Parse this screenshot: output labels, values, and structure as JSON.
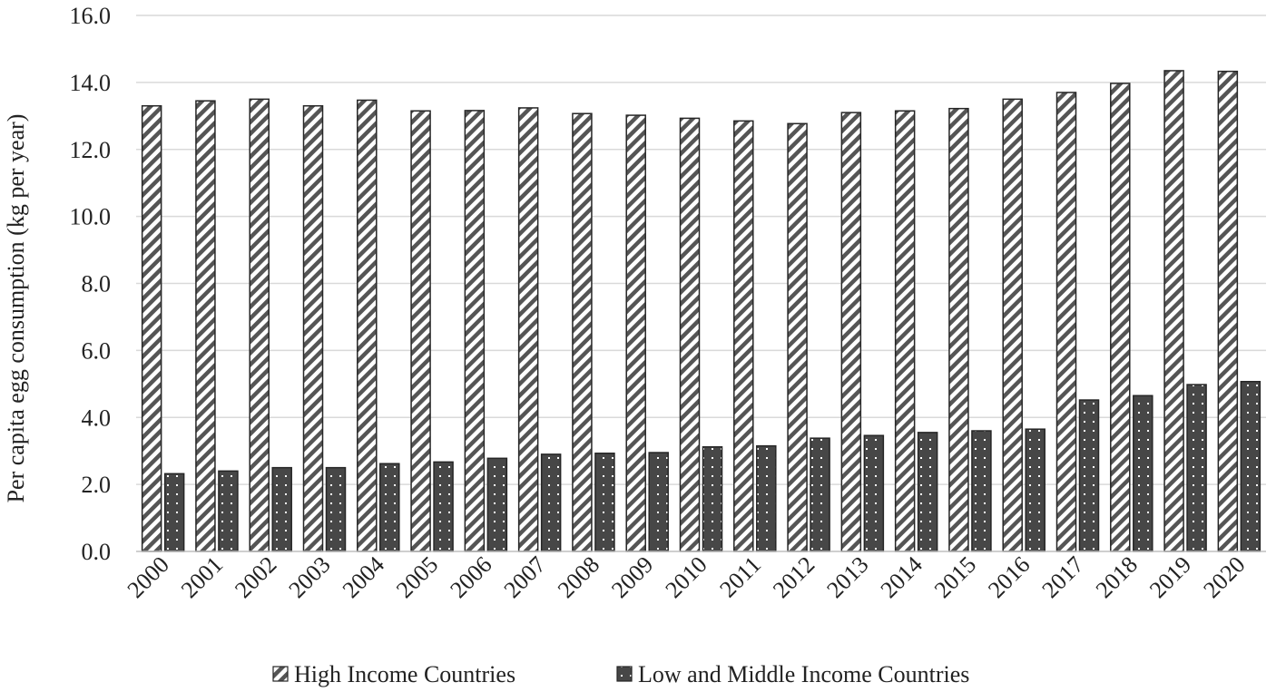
{
  "chart_data": {
    "type": "bar",
    "categories": [
      "2000",
      "2001",
      "2002",
      "2003",
      "2004",
      "2005",
      "2006",
      "2007",
      "2008",
      "2009",
      "2010",
      "2011",
      "2012",
      "2013",
      "2014",
      "2015",
      "2016",
      "2017",
      "2018",
      "2019",
      "2020"
    ],
    "series": [
      {
        "name": "High Income Countries",
        "pattern": "diagonal-hatch",
        "values": [
          13.3,
          13.45,
          13.5,
          13.3,
          13.47,
          13.15,
          13.16,
          13.24,
          13.07,
          13.02,
          12.93,
          12.85,
          12.77,
          13.1,
          13.15,
          13.22,
          13.5,
          13.7,
          13.97,
          14.35,
          14.33
        ]
      },
      {
        "name": "Low and Middle Income Countries",
        "pattern": "dark-dotted",
        "values": [
          2.32,
          2.4,
          2.5,
          2.5,
          2.62,
          2.67,
          2.78,
          2.9,
          2.93,
          2.95,
          3.12,
          3.15,
          3.38,
          3.46,
          3.55,
          3.6,
          3.65,
          4.52,
          4.65,
          4.98,
          5.07
        ]
      }
    ],
    "ylabel": "Per capita egg consumption (kg per year)",
    "ylim": [
      0,
      16
    ],
    "yticks": [
      "0.0",
      "2.0",
      "4.0",
      "6.0",
      "8.0",
      "10.0",
      "12.0",
      "14.0",
      "16.0"
    ],
    "grid": true,
    "legend_position": "bottom",
    "colors": {
      "dark": "#444444",
      "grid": "#d9d9d9",
      "hatch": "#555555"
    }
  }
}
